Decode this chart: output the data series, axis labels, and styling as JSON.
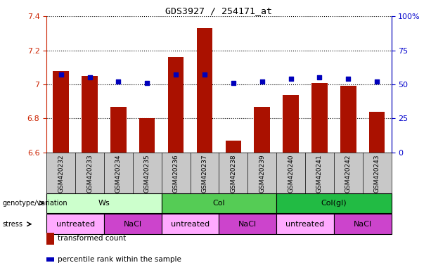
{
  "title": "GDS3927 / 254171_at",
  "samples": [
    "GSM420232",
    "GSM420233",
    "GSM420234",
    "GSM420235",
    "GSM420236",
    "GSM420237",
    "GSM420238",
    "GSM420239",
    "GSM420240",
    "GSM420241",
    "GSM420242",
    "GSM420243"
  ],
  "bar_values": [
    7.08,
    7.05,
    6.87,
    6.8,
    7.16,
    7.33,
    6.67,
    6.87,
    6.94,
    7.01,
    6.99,
    6.84
  ],
  "dot_values": [
    57,
    55,
    52,
    51,
    57,
    57,
    51,
    52,
    54,
    55,
    54,
    52
  ],
  "bar_base": 6.6,
  "ylim_left": [
    6.6,
    7.4
  ],
  "ylim_right": [
    0,
    100
  ],
  "yticks_left": [
    6.6,
    6.8,
    7.0,
    7.2,
    7.4
  ],
  "yticks_right": [
    0,
    25,
    50,
    75,
    100
  ],
  "ytick_labels_left": [
    "6.6",
    "6.8",
    "7",
    "7.2",
    "7.4"
  ],
  "ytick_labels_right": [
    "0",
    "25",
    "50",
    "75",
    "100%"
  ],
  "bar_color": "#AA1100",
  "dot_color": "#0000BB",
  "bg_color": "#FFFFFF",
  "plot_bg": "#FFFFFF",
  "xtick_bg": "#C8C8C8",
  "genotype_groups": [
    {
      "label": "Ws",
      "start": 0,
      "end": 3,
      "color": "#CCFFCC"
    },
    {
      "label": "Col",
      "start": 4,
      "end": 7,
      "color": "#55CC55"
    },
    {
      "label": "Col(gl)",
      "start": 8,
      "end": 11,
      "color": "#22BB44"
    }
  ],
  "stress_groups": [
    {
      "label": "untreated",
      "start": 0,
      "end": 1,
      "color": "#FFAAFF"
    },
    {
      "label": "NaCl",
      "start": 2,
      "end": 3,
      "color": "#CC44CC"
    },
    {
      "label": "untreated",
      "start": 4,
      "end": 5,
      "color": "#FFAAFF"
    },
    {
      "label": "NaCl",
      "start": 6,
      "end": 7,
      "color": "#CC44CC"
    },
    {
      "label": "untreated",
      "start": 8,
      "end": 9,
      "color": "#FFAAFF"
    },
    {
      "label": "NaCl",
      "start": 10,
      "end": 11,
      "color": "#CC44CC"
    }
  ],
  "legend_bar_label": "transformed count",
  "legend_dot_label": "percentile rank within the sample",
  "genotype_label": "genotype/variation",
  "stress_label": "stress",
  "left_axis_color": "#CC2200",
  "right_axis_color": "#0000CC"
}
